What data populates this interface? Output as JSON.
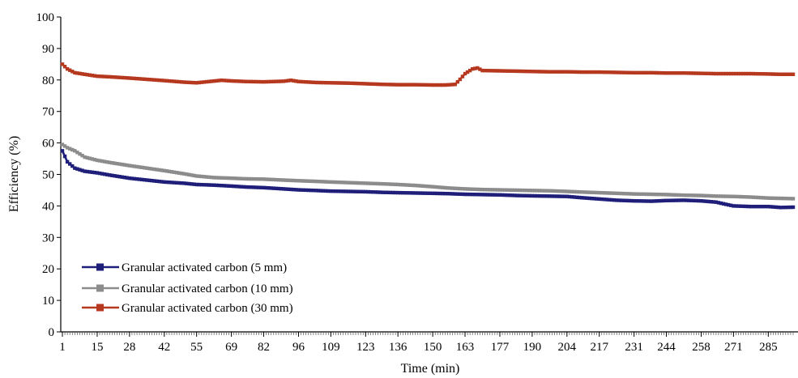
{
  "chart_data": {
    "type": "line",
    "title": "",
    "xlabel": "Time (min)",
    "ylabel": "Efficiency (%)",
    "xlim": [
      1,
      295
    ],
    "ylim": [
      0,
      100
    ],
    "yticks": [
      0,
      10,
      20,
      30,
      40,
      50,
      60,
      70,
      80,
      90,
      100
    ],
    "xticks": [
      1,
      15,
      28,
      42,
      55,
      69,
      82,
      96,
      109,
      123,
      136,
      150,
      163,
      177,
      190,
      204,
      217,
      231,
      244,
      258,
      271,
      285
    ],
    "grid": false,
    "legend_position": "bottom-left",
    "series": [
      {
        "name": "Granular activated carbon (5 mm)",
        "color": "#1f1f7a",
        "marker": "square",
        "points": [
          [
            1,
            57.5
          ],
          [
            3,
            54
          ],
          [
            6,
            52
          ],
          [
            10,
            51
          ],
          [
            15,
            50.5
          ],
          [
            20,
            49.8
          ],
          [
            28,
            48.8
          ],
          [
            35,
            48.2
          ],
          [
            42,
            47.6
          ],
          [
            50,
            47.2
          ],
          [
            55,
            46.8
          ],
          [
            62,
            46.6
          ],
          [
            69,
            46.3
          ],
          [
            75,
            46
          ],
          [
            82,
            45.8
          ],
          [
            90,
            45.4
          ],
          [
            96,
            45.1
          ],
          [
            103,
            44.9
          ],
          [
            109,
            44.7
          ],
          [
            116,
            44.6
          ],
          [
            123,
            44.5
          ],
          [
            130,
            44.3
          ],
          [
            136,
            44.2
          ],
          [
            143,
            44.1
          ],
          [
            150,
            44
          ],
          [
            156,
            43.9
          ],
          [
            163,
            43.7
          ],
          [
            170,
            43.6
          ],
          [
            177,
            43.5
          ],
          [
            184,
            43.3
          ],
          [
            190,
            43.2
          ],
          [
            197,
            43.1
          ],
          [
            204,
            43
          ],
          [
            210,
            42.6
          ],
          [
            217,
            42.2
          ],
          [
            224,
            41.8
          ],
          [
            231,
            41.6
          ],
          [
            238,
            41.5
          ],
          [
            244,
            41.7
          ],
          [
            251,
            41.8
          ],
          [
            258,
            41.6
          ],
          [
            264,
            41.2
          ],
          [
            268,
            40.5
          ],
          [
            271,
            40
          ],
          [
            278,
            39.8
          ],
          [
            285,
            39.8
          ],
          [
            290,
            39.5
          ],
          [
            295,
            39.6
          ]
        ]
      },
      {
        "name": "Granular activated carbon (10 mm)",
        "color": "#8c8c8c",
        "marker": "square",
        "points": [
          [
            1,
            59.5
          ],
          [
            3,
            58.5
          ],
          [
            6,
            57.5
          ],
          [
            10,
            55.5
          ],
          [
            15,
            54.5
          ],
          [
            20,
            53.8
          ],
          [
            28,
            52.8
          ],
          [
            35,
            52
          ],
          [
            42,
            51.2
          ],
          [
            50,
            50.2
          ],
          [
            55,
            49.5
          ],
          [
            62,
            49
          ],
          [
            69,
            48.8
          ],
          [
            75,
            48.6
          ],
          [
            82,
            48.5
          ],
          [
            90,
            48.2
          ],
          [
            96,
            48
          ],
          [
            103,
            47.8
          ],
          [
            109,
            47.6
          ],
          [
            116,
            47.4
          ],
          [
            123,
            47.2
          ],
          [
            130,
            47
          ],
          [
            136,
            46.8
          ],
          [
            143,
            46.5
          ],
          [
            150,
            46.1
          ],
          [
            156,
            45.7
          ],
          [
            163,
            45.4
          ],
          [
            170,
            45.2
          ],
          [
            177,
            45.1
          ],
          [
            184,
            45
          ],
          [
            190,
            44.9
          ],
          [
            197,
            44.8
          ],
          [
            204,
            44.6
          ],
          [
            210,
            44.4
          ],
          [
            217,
            44.2
          ],
          [
            224,
            44
          ],
          [
            231,
            43.8
          ],
          [
            238,
            43.7
          ],
          [
            244,
            43.6
          ],
          [
            251,
            43.4
          ],
          [
            258,
            43.3
          ],
          [
            264,
            43.1
          ],
          [
            271,
            43
          ],
          [
            278,
            42.8
          ],
          [
            285,
            42.5
          ],
          [
            290,
            42.4
          ],
          [
            295,
            42.3
          ]
        ]
      },
      {
        "name": "Granular activated carbon (30 mm)",
        "color": "#b5381f",
        "marker": "square",
        "points": [
          [
            1,
            85
          ],
          [
            3,
            83.5
          ],
          [
            6,
            82.3
          ],
          [
            10,
            81.8
          ],
          [
            15,
            81.2
          ],
          [
            20,
            81
          ],
          [
            28,
            80.6
          ],
          [
            35,
            80.2
          ],
          [
            42,
            79.8
          ],
          [
            50,
            79.3
          ],
          [
            55,
            79.1
          ],
          [
            60,
            79.5
          ],
          [
            65,
            79.9
          ],
          [
            69,
            79.7
          ],
          [
            75,
            79.5
          ],
          [
            82,
            79.4
          ],
          [
            90,
            79.6
          ],
          [
            93,
            79.9
          ],
          [
            96,
            79.5
          ],
          [
            103,
            79.2
          ],
          [
            109,
            79.1
          ],
          [
            116,
            79
          ],
          [
            123,
            78.8
          ],
          [
            130,
            78.6
          ],
          [
            136,
            78.5
          ],
          [
            143,
            78.5
          ],
          [
            150,
            78.4
          ],
          [
            155,
            78.4
          ],
          [
            159,
            78.6
          ],
          [
            161,
            80.2
          ],
          [
            163,
            82
          ],
          [
            166,
            83.5
          ],
          [
            168,
            83.8
          ],
          [
            170,
            83
          ],
          [
            177,
            82.9
          ],
          [
            184,
            82.8
          ],
          [
            190,
            82.7
          ],
          [
            197,
            82.6
          ],
          [
            204,
            82.6
          ],
          [
            210,
            82.5
          ],
          [
            217,
            82.5
          ],
          [
            224,
            82.4
          ],
          [
            231,
            82.3
          ],
          [
            238,
            82.3
          ],
          [
            244,
            82.2
          ],
          [
            251,
            82.2
          ],
          [
            258,
            82.1
          ],
          [
            264,
            82
          ],
          [
            271,
            82
          ],
          [
            278,
            82
          ],
          [
            285,
            81.9
          ],
          [
            290,
            81.8
          ],
          [
            295,
            81.8
          ]
        ]
      }
    ]
  }
}
